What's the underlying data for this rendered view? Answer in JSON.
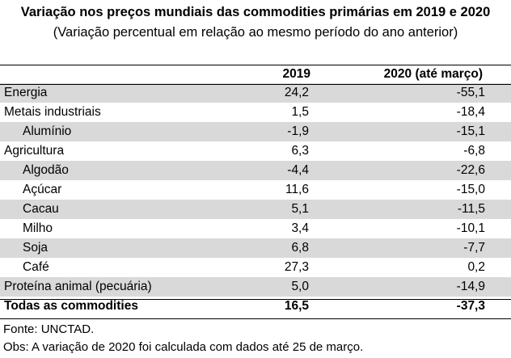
{
  "title": "Variação nos preços mundiais das commodities primárias em 2019 e 2020",
  "subtitle": "(Variação percentual em relação ao mesmo período do ano anterior)",
  "table": {
    "headers": [
      "",
      "2019",
      "2020 (até março)"
    ],
    "rows": [
      {
        "label": "Energia",
        "v2019": "24,2",
        "v2020": "-55,1",
        "indent": false,
        "shaded": true
      },
      {
        "label": "Metais industriais",
        "v2019": "1,5",
        "v2020": "-18,4",
        "indent": false,
        "shaded": false
      },
      {
        "label": "Alumínio",
        "v2019": "-1,9",
        "v2020": "-15,1",
        "indent": true,
        "shaded": true
      },
      {
        "label": "Agricultura",
        "v2019": "6,3",
        "v2020": "-6,8",
        "indent": false,
        "shaded": false
      },
      {
        "label": "Algodão",
        "v2019": "-4,4",
        "v2020": "-22,6",
        "indent": true,
        "shaded": true
      },
      {
        "label": "Açúcar",
        "v2019": "11,6",
        "v2020": "-15,0",
        "indent": true,
        "shaded": false
      },
      {
        "label": "Cacau",
        "v2019": "5,1",
        "v2020": "-11,5",
        "indent": true,
        "shaded": true
      },
      {
        "label": "Milho",
        "v2019": "3,4",
        "v2020": "-10,1",
        "indent": true,
        "shaded": false
      },
      {
        "label": "Soja",
        "v2019": "6,8",
        "v2020": "-7,7",
        "indent": true,
        "shaded": true
      },
      {
        "label": "Café",
        "v2019": "27,3",
        "v2020": "0,2",
        "indent": true,
        "shaded": false
      },
      {
        "label": "Proteína animal (pecuária)",
        "v2019": "5,0",
        "v2020": "-14,9",
        "indent": false,
        "shaded": true
      }
    ],
    "total": {
      "label": "Todas as commodities",
      "v2019": "16,5",
      "v2020": "-37,3"
    }
  },
  "source": "Fonte: UNCTAD.",
  "note": "Obs: A variação de 2020 foi calculada com dados até 25 de março."
}
